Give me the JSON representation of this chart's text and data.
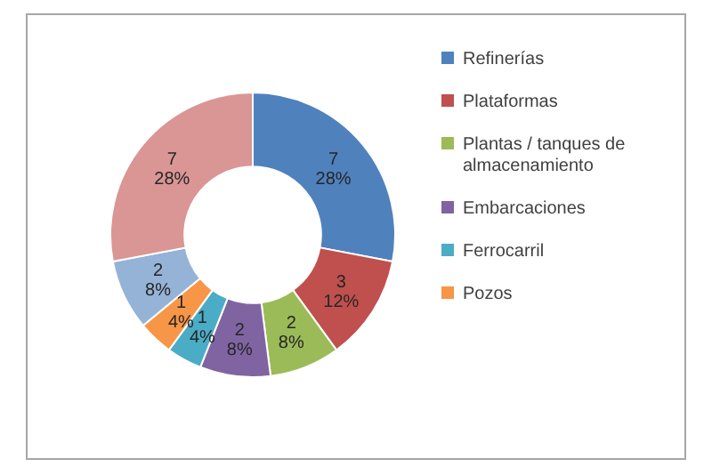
{
  "chart_data": {
    "type": "donut",
    "categories": [
      "Refinerías",
      "Plataformas",
      "Plantas / tanques de almacenamiento",
      "Embarcaciones",
      "Ferrocarril",
      "Pozos",
      null,
      null
    ],
    "values": [
      7,
      3,
      2,
      2,
      1,
      1,
      2,
      7
    ],
    "colors": [
      "#4f81bd",
      "#c0504d",
      "#9bbb59",
      "#8064a2",
      "#4bacc6",
      "#f79646",
      "#95b3d7",
      "#d99694"
    ],
    "value_labels": [
      "7\n28%",
      "3\n12%",
      "2\n8%",
      "2\n8%",
      "1\n4%",
      "1\n4%",
      "2\n8%",
      "7\n28%"
    ],
    "legend": "right"
  }
}
